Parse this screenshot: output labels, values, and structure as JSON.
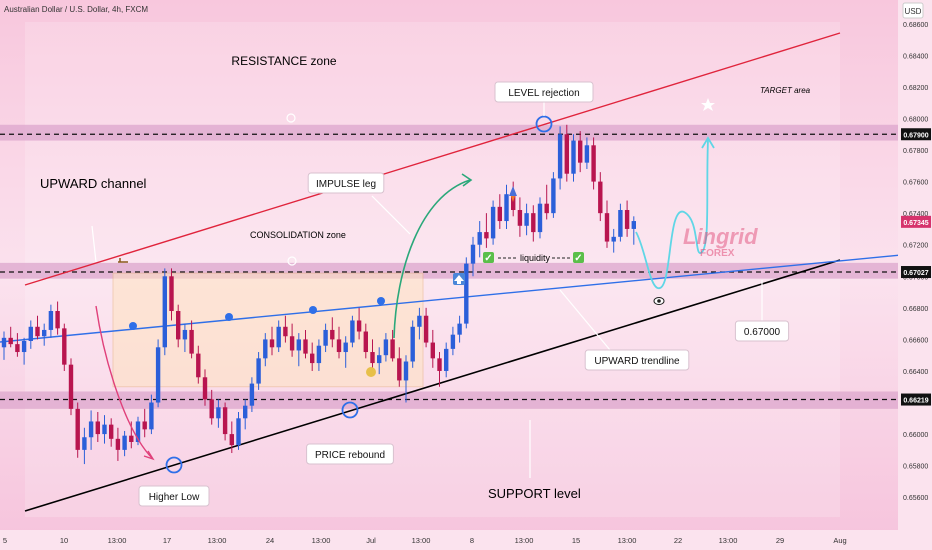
{
  "header": {
    "symbol_info": "Australian Dollar / U.S. Dollar, 4h, FXCM",
    "currency": "USD"
  },
  "watermark": {
    "line1": "Lingrid",
    "line2": "FOREX"
  },
  "colors": {
    "background": "#fbe3ee",
    "zone_band": "#dca6cc",
    "candle_up": "#2b5fd9",
    "candle_down": "#b8154f",
    "channel_line": "#e0243c",
    "trendline": "#2f6fe8",
    "support_line": "#000000",
    "projection": "#5fd6e6",
    "impulse_arrow": "#2aa87a",
    "price_badge": "#d6336c"
  },
  "chart_data": {
    "type": "candlestick",
    "title": "",
    "ylim": [
      0.655,
      0.687
    ],
    "y_ticks": [
      "0.68600",
      "0.68400",
      "0.68200",
      "0.68000",
      "0.67800",
      "0.67600",
      "0.67400",
      "0.67200",
      "0.67000",
      "0.66800",
      "0.66600",
      "0.66400",
      "0.66200",
      "0.66000",
      "0.65800",
      "0.65600"
    ],
    "x_ticks": [
      "5",
      "10",
      "13:00",
      "17",
      "13:00",
      "24",
      "13:00",
      "Jul",
      "13:00",
      "8",
      "13:00",
      "15",
      "13:00",
      "22",
      "13:00",
      "29",
      "Aug"
    ],
    "price_labels": [
      {
        "value": 0.679,
        "text": "0.67900",
        "style": "dark"
      },
      {
        "value": 0.67345,
        "text": "0.67345",
        "style": "current"
      },
      {
        "value": 0.67027,
        "text": "0.67027",
        "style": "dark"
      },
      {
        "value": 0.66219,
        "text": "0.66219",
        "style": "dark"
      }
    ],
    "levels": [
      {
        "name": "resistance",
        "value": 0.679,
        "band": [
          0.6786,
          0.6796
        ]
      },
      {
        "name": "consolidation-top",
        "value": 0.67027,
        "band": [
          0.66985,
          0.67085
        ]
      },
      {
        "name": "support",
        "value": 0.66219,
        "band": [
          0.6616,
          0.6627
        ]
      }
    ],
    "annotations": {
      "resistance_zone": "RESISTANCE zone",
      "upward_channel": "UPWARD channel",
      "impulse_leg": "IMPULSE leg",
      "consolidation_zone": "CONSOLIDATION zone",
      "level_rejection": "LEVEL rejection",
      "target_area": "TARGET area",
      "liquidity": "liquidity",
      "price_label": "0.67000",
      "upward_trendline": "UPWARD trendline",
      "price_rebound": "PRICE rebound",
      "higher_low": "Higher Low",
      "support_level": "SUPPORT level"
    },
    "candles": [
      [
        0.6655,
        0.6665,
        0.6647,
        0.6661
      ],
      [
        0.6661,
        0.6668,
        0.6655,
        0.6657
      ],
      [
        0.6657,
        0.6664,
        0.6649,
        0.6652
      ],
      [
        0.6652,
        0.6661,
        0.6644,
        0.6659
      ],
      [
        0.6659,
        0.6672,
        0.6654,
        0.6668
      ],
      [
        0.6668,
        0.6675,
        0.666,
        0.6662
      ],
      [
        0.6662,
        0.667,
        0.6656,
        0.6666
      ],
      [
        0.6666,
        0.6682,
        0.6661,
        0.6678
      ],
      [
        0.6678,
        0.6684,
        0.6663,
        0.6667
      ],
      [
        0.6667,
        0.667,
        0.664,
        0.6644
      ],
      [
        0.6644,
        0.6648,
        0.6612,
        0.6616
      ],
      [
        0.6616,
        0.662,
        0.6585,
        0.659
      ],
      [
        0.659,
        0.6604,
        0.6581,
        0.6598
      ],
      [
        0.6598,
        0.6615,
        0.659,
        0.6608
      ],
      [
        0.6608,
        0.6614,
        0.6595,
        0.66
      ],
      [
        0.66,
        0.6612,
        0.6594,
        0.6606
      ],
      [
        0.6606,
        0.661,
        0.6592,
        0.6597
      ],
      [
        0.6597,
        0.6604,
        0.6583,
        0.659
      ],
      [
        0.659,
        0.6602,
        0.6586,
        0.6599
      ],
      [
        0.6599,
        0.6608,
        0.6591,
        0.6595
      ],
      [
        0.6595,
        0.6611,
        0.6593,
        0.6608
      ],
      [
        0.6608,
        0.6616,
        0.6598,
        0.6603
      ],
      [
        0.6603,
        0.6625,
        0.66,
        0.662
      ],
      [
        0.662,
        0.666,
        0.6617,
        0.6655
      ],
      [
        0.6655,
        0.6705,
        0.665,
        0.67
      ],
      [
        0.67,
        0.6705,
        0.6672,
        0.6678
      ],
      [
        0.6678,
        0.6682,
        0.6655,
        0.666
      ],
      [
        0.666,
        0.667,
        0.6652,
        0.6666
      ],
      [
        0.6666,
        0.6672,
        0.6648,
        0.6651
      ],
      [
        0.6651,
        0.6656,
        0.6632,
        0.6636
      ],
      [
        0.6636,
        0.6641,
        0.6618,
        0.6622
      ],
      [
        0.6622,
        0.6628,
        0.6606,
        0.661
      ],
      [
        0.661,
        0.6622,
        0.6604,
        0.6617
      ],
      [
        0.6617,
        0.662,
        0.6596,
        0.66
      ],
      [
        0.66,
        0.6608,
        0.6588,
        0.6593
      ],
      [
        0.6593,
        0.6614,
        0.659,
        0.661
      ],
      [
        0.661,
        0.6622,
        0.6603,
        0.6618
      ],
      [
        0.6618,
        0.6636,
        0.6614,
        0.6632
      ],
      [
        0.6632,
        0.6652,
        0.6628,
        0.6648
      ],
      [
        0.6648,
        0.6664,
        0.6643,
        0.666
      ],
      [
        0.666,
        0.6668,
        0.665,
        0.6655
      ],
      [
        0.6655,
        0.6672,
        0.6652,
        0.6668
      ],
      [
        0.6668,
        0.6675,
        0.6658,
        0.6662
      ],
      [
        0.6662,
        0.667,
        0.6649,
        0.6653
      ],
      [
        0.6653,
        0.6664,
        0.6643,
        0.666
      ],
      [
        0.666,
        0.6666,
        0.6648,
        0.6651
      ],
      [
        0.6651,
        0.6658,
        0.664,
        0.6645
      ],
      [
        0.6645,
        0.666,
        0.664,
        0.6656
      ],
      [
        0.6656,
        0.667,
        0.6652,
        0.6666
      ],
      [
        0.6666,
        0.6674,
        0.6655,
        0.666
      ],
      [
        0.666,
        0.6668,
        0.6648,
        0.6652
      ],
      [
        0.6652,
        0.6662,
        0.6642,
        0.6658
      ],
      [
        0.6658,
        0.6675,
        0.6655,
        0.6672
      ],
      [
        0.6672,
        0.668,
        0.666,
        0.6665
      ],
      [
        0.6665,
        0.667,
        0.6648,
        0.6652
      ],
      [
        0.6652,
        0.666,
        0.664,
        0.6645
      ],
      [
        0.6645,
        0.6655,
        0.6638,
        0.665
      ],
      [
        0.665,
        0.6664,
        0.6646,
        0.666
      ],
      [
        0.666,
        0.6666,
        0.6646,
        0.6648
      ],
      [
        0.6648,
        0.6655,
        0.663,
        0.6634
      ],
      [
        0.6634,
        0.665,
        0.662,
        0.6646
      ],
      [
        0.6646,
        0.6672,
        0.6642,
        0.6668
      ],
      [
        0.6668,
        0.668,
        0.666,
        0.6675
      ],
      [
        0.6675,
        0.668,
        0.6655,
        0.6658
      ],
      [
        0.6658,
        0.6666,
        0.6642,
        0.6648
      ],
      [
        0.6648,
        0.6652,
        0.663,
        0.664
      ],
      [
        0.664,
        0.6658,
        0.6636,
        0.6654
      ],
      [
        0.6654,
        0.6668,
        0.665,
        0.6663
      ],
      [
        0.6663,
        0.6675,
        0.6658,
        0.667
      ],
      [
        0.667,
        0.6712,
        0.6667,
        0.6708
      ],
      [
        0.6708,
        0.6725,
        0.67,
        0.672
      ],
      [
        0.672,
        0.6735,
        0.6712,
        0.6728
      ],
      [
        0.6728,
        0.674,
        0.6718,
        0.6724
      ],
      [
        0.6724,
        0.6748,
        0.672,
        0.6744
      ],
      [
        0.6744,
        0.6752,
        0.673,
        0.6735
      ],
      [
        0.6735,
        0.6758,
        0.673,
        0.6752
      ],
      [
        0.6752,
        0.676,
        0.6738,
        0.6742
      ],
      [
        0.6742,
        0.675,
        0.6725,
        0.6732
      ],
      [
        0.6732,
        0.6746,
        0.6726,
        0.674
      ],
      [
        0.674,
        0.6745,
        0.6722,
        0.6728
      ],
      [
        0.6728,
        0.675,
        0.6724,
        0.6746
      ],
      [
        0.6746,
        0.6758,
        0.6736,
        0.674
      ],
      [
        0.674,
        0.6766,
        0.6737,
        0.6762
      ],
      [
        0.6762,
        0.6795,
        0.6755,
        0.679
      ],
      [
        0.679,
        0.6796,
        0.676,
        0.6765
      ],
      [
        0.6765,
        0.679,
        0.676,
        0.6786
      ],
      [
        0.6786,
        0.6792,
        0.6766,
        0.6772
      ],
      [
        0.6772,
        0.6788,
        0.6768,
        0.6783
      ],
      [
        0.6783,
        0.6788,
        0.6755,
        0.676
      ],
      [
        0.676,
        0.6766,
        0.6735,
        0.674
      ],
      [
        0.674,
        0.6748,
        0.6718,
        0.6722
      ],
      [
        0.6722,
        0.673,
        0.6715,
        0.6725
      ],
      [
        0.6725,
        0.6746,
        0.6722,
        0.6742
      ],
      [
        0.6742,
        0.6748,
        0.6725,
        0.673
      ],
      [
        0.673,
        0.6738,
        0.672,
        0.6735
      ]
    ]
  }
}
